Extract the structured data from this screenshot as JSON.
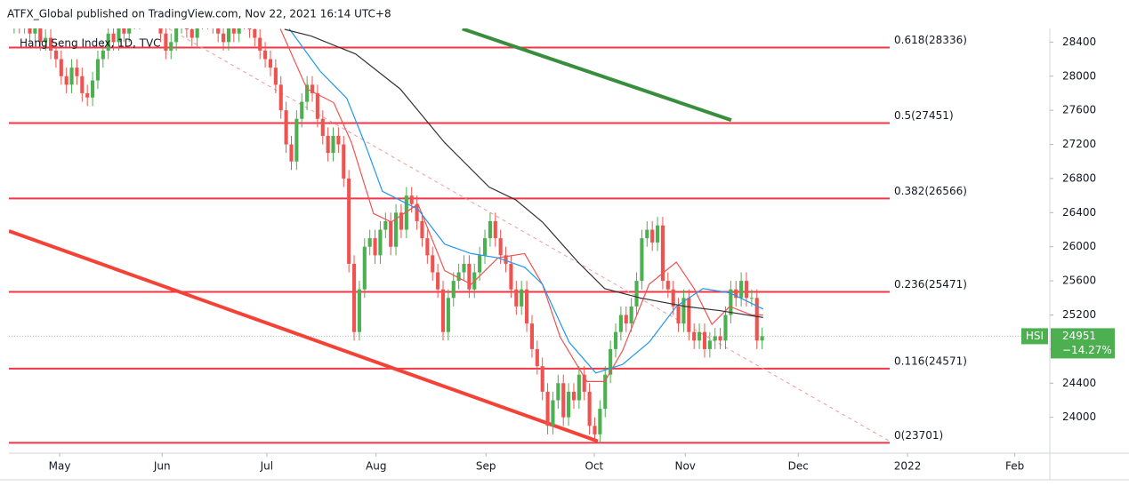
{
  "chart_data": {
    "type": "candlestick",
    "title": "ATFX_Global published on TradingView.com, Nov 22, 2021 16:14 UTC+8",
    "subtitle": "Hang Seng Index, 1D, TVC",
    "up_color": "#4caf50",
    "down_color": "#ef5350",
    "x": [
      1,
      2,
      3,
      4,
      5,
      6,
      7,
      8,
      9,
      10,
      11,
      12,
      13,
      14,
      15,
      16,
      17,
      18,
      19,
      20,
      21,
      22,
      23,
      24,
      25,
      26,
      27,
      28,
      29,
      30,
      31,
      32,
      33,
      34,
      35,
      36,
      37,
      38,
      39,
      40,
      41,
      42,
      43,
      44,
      45,
      46,
      47,
      48,
      49,
      50,
      51,
      52,
      53,
      54,
      55,
      56,
      57,
      58,
      59,
      60,
      61,
      62,
      63,
      64,
      65,
      66,
      67,
      68,
      69,
      70,
      71,
      72,
      73,
      74,
      75,
      76,
      77,
      78,
      79,
      80,
      81,
      82,
      83,
      84,
      85,
      86,
      87,
      88,
      89,
      90,
      91,
      92,
      93,
      94,
      95,
      96,
      97,
      98,
      99,
      100,
      101,
      102,
      103,
      104,
      105,
      106,
      107,
      108,
      109,
      110,
      111,
      112,
      113,
      114,
      115,
      116,
      117,
      118,
      119,
      120,
      121,
      122,
      123,
      124,
      125,
      126,
      127,
      128,
      129,
      130,
      131,
      132,
      133,
      134,
      135,
      136,
      137,
      138,
      139,
      140,
      141,
      142,
      143,
      144
    ],
    "open": [
      28600,
      28700,
      28600,
      28800,
      28500,
      28650,
      28400,
      28450,
      28300,
      28200,
      28000,
      27900,
      28100,
      28000,
      27800,
      27750,
      27950,
      28200,
      28300,
      28500,
      28400,
      28600,
      28500,
      28700,
      28650,
      28800,
      28750,
      28900,
      28700,
      28500,
      28300,
      28400,
      28600,
      28700,
      28550,
      28450,
      28800,
      28650,
      28700,
      28600,
      28500,
      28400,
      28600,
      28500,
      28700,
      28650,
      28550,
      28450,
      28300,
      28200,
      28100,
      27900,
      27600,
      27200,
      27000,
      27500,
      27700,
      27900,
      27800,
      27500,
      27300,
      27100,
      27300,
      27200,
      26800,
      25800,
      25000,
      25500,
      26000,
      26100,
      25900,
      26200,
      26300,
      26000,
      26400,
      26200,
      26600,
      26500,
      26300,
      26100,
      25900,
      25700,
      25500,
      25000,
      25400,
      25600,
      25700,
      25800,
      25500,
      25700,
      25900,
      26100,
      26300,
      26100,
      25900,
      25800,
      25500,
      25300,
      25500,
      25100,
      24800,
      24600,
      24300,
      23900,
      24200,
      24400,
      24000,
      24300,
      24200,
      24500,
      24300,
      23900,
      23800,
      24100,
      24500,
      24800,
      25000,
      25200,
      25100,
      25300,
      25600,
      26100,
      26200,
      26050,
      26250,
      25600,
      25500,
      25300,
      25100,
      25400,
      25000,
      24900,
      25000,
      24800,
      24900,
      24950,
      24900,
      25200,
      25500,
      25400,
      25600,
      25400,
      25400,
      24900
    ],
    "high": [
      28800,
      28800,
      28900,
      28900,
      28750,
      28750,
      28550,
      28550,
      28400,
      28300,
      28100,
      28200,
      28200,
      28100,
      27900,
      28050,
      28300,
      28400,
      28600,
      28600,
      28700,
      28700,
      28800,
      28800,
      28900,
      28900,
      29000,
      29000,
      28800,
      28600,
      28500,
      28700,
      28800,
      28800,
      28650,
      28900,
      28900,
      28800,
      28800,
      28700,
      28600,
      28700,
      28700,
      28800,
      28800,
      28750,
      28650,
      28550,
      28400,
      28300,
      28200,
      28000,
      27700,
      27300,
      27600,
      27800,
      28000,
      28000,
      27900,
      27600,
      27400,
      27400,
      27400,
      27300,
      26900,
      25900,
      25600,
      26100,
      26200,
      26200,
      26300,
      26400,
      26400,
      26500,
      26500,
      26700,
      26700,
      26600,
      26400,
      26200,
      26000,
      25800,
      25600,
      25500,
      25700,
      25800,
      25900,
      25900,
      25800,
      26000,
      26200,
      26400,
      26400,
      26200,
      26000,
      25900,
      25600,
      25600,
      25600,
      25200,
      24900,
      24700,
      24400,
      24300,
      24500,
      24500,
      24400,
      24400,
      24600,
      24600,
      24400,
      24000,
      24200,
      24600,
      24900,
      25100,
      25300,
      25300,
      25400,
      25700,
      26200,
      26300,
      26300,
      26350,
      26350,
      25700,
      25600,
      25400,
      25500,
      25500,
      25100,
      25100,
      25100,
      25000,
      25050,
      25050,
      25300,
      25600,
      25600,
      25700,
      25700,
      25500,
      25500,
      25051
    ],
    "low": [
      28500,
      28500,
      28500,
      28400,
      28400,
      28300,
      28300,
      28200,
      28100,
      27900,
      27800,
      27800,
      27900,
      27700,
      27650,
      27650,
      27850,
      28100,
      28200,
      28300,
      28300,
      28400,
      28400,
      28550,
      28550,
      28650,
      28650,
      28600,
      28400,
      28200,
      28200,
      28300,
      28500,
      28450,
      28350,
      28350,
      28550,
      28550,
      28500,
      28400,
      28300,
      28300,
      28400,
      28400,
      28550,
      28450,
      28350,
      28200,
      28100,
      28000,
      27800,
      27500,
      27100,
      26900,
      26900,
      27400,
      27600,
      27700,
      27400,
      27200,
      27000,
      27000,
      27100,
      26700,
      25700,
      24900,
      24900,
      25400,
      25900,
      25800,
      25800,
      26100,
      25900,
      25900,
      26100,
      26100,
      26400,
      26200,
      26000,
      25800,
      25600,
      25400,
      24900,
      24900,
      25300,
      25500,
      25600,
      25400,
      25400,
      25600,
      25800,
      26000,
      26000,
      25800,
      25700,
      25400,
      25200,
      25200,
      25000,
      24700,
      24500,
      24200,
      23800,
      23800,
      24100,
      23900,
      23900,
      24100,
      24100,
      24200,
      23800,
      23700,
      23700,
      24000,
      24400,
      24700,
      24900,
      25000,
      25000,
      25200,
      25500,
      26000,
      25950,
      25950,
      25500,
      25400,
      25200,
      25000,
      25000,
      24900,
      24800,
      24800,
      24700,
      24700,
      24800,
      24800,
      24800,
      25100,
      25300,
      25300,
      25300,
      25300,
      24800,
      24800
    ],
    "close": [
      28700,
      28600,
      28800,
      28500,
      28650,
      28400,
      28450,
      28300,
      28200,
      28000,
      27900,
      28100,
      28000,
      27800,
      27750,
      27950,
      28200,
      28300,
      28500,
      28400,
      28600,
      28500,
      28700,
      28650,
      28800,
      28750,
      28900,
      28700,
      28500,
      28300,
      28400,
      28600,
      28700,
      28550,
      28450,
      28800,
      28650,
      28700,
      28600,
      28500,
      28400,
      28600,
      28500,
      28700,
      28650,
      28550,
      28450,
      28300,
      28200,
      28100,
      27900,
      27600,
      27200,
      27000,
      27500,
      27700,
      27900,
      27800,
      27500,
      27300,
      27100,
      27300,
      27200,
      26800,
      25800,
      25000,
      25500,
      26000,
      26100,
      25900,
      26200,
      26300,
      26000,
      26400,
      26200,
      26600,
      26500,
      26300,
      26100,
      25900,
      25700,
      25500,
      25000,
      25400,
      25600,
      25700,
      25800,
      25500,
      25700,
      25900,
      26100,
      26300,
      26100,
      25900,
      25800,
      25500,
      25300,
      25500,
      25100,
      24800,
      24600,
      24300,
      23900,
      24200,
      24400,
      24000,
      24300,
      24200,
      24500,
      24300,
      23900,
      23800,
      24100,
      24500,
      24800,
      25000,
      25200,
      25100,
      25300,
      25600,
      26100,
      26200,
      26050,
      26250,
      25600,
      25500,
      25300,
      25100,
      25400,
      25000,
      24900,
      25000,
      24800,
      24900,
      24950,
      24900,
      25200,
      25500,
      25400,
      25600,
      25400,
      25400,
      24900,
      24951
    ],
    "lines": [
      {
        "color": "#ef5350",
        "x": [
          51.9,
          57,
          62.1,
          65.5,
          69.7,
          73.1,
          78.2,
          83.3,
          88.4,
          93.5,
          98.6,
          102,
          105.4,
          110.5,
          113.9,
          117.3,
          122.4,
          127.6,
          131,
          134.4,
          137.8,
          142,
          144.2
        ],
        "values": [
          28556,
          27850,
          27690,
          27220,
          26390,
          26290,
          26500,
          25720,
          25560,
          25870,
          25920,
          25560,
          24940,
          24420,
          24420,
          24780,
          25560,
          25820,
          25510,
          25090,
          25300,
          25200,
          25200
        ]
      },
      {
        "color": "#2196f3",
        "x": [
          53.6,
          59.5,
          64.6,
          68,
          71.4,
          78.2,
          83.3,
          88.4,
          93.5,
          98.6,
          102,
          107.1,
          112.2,
          117.3,
          122.4,
          127.6,
          132.7,
          137.8,
          144.2
        ],
        "values": [
          28556,
          28060,
          27740,
          27220,
          26650,
          26440,
          26030,
          25920,
          25870,
          25760,
          25560,
          24880,
          24520,
          24620,
          24880,
          25300,
          25510,
          25460,
          25270
        ]
      },
      {
        "color": "#333333",
        "x": [
          52.7,
          57.8,
          66.3,
          74.8,
          83.3,
          91.8,
          96.9,
          102,
          108.8,
          113.9,
          120.7,
          129.3,
          136,
          144.2
        ],
        "values": [
          28550,
          28470,
          28260,
          27850,
          27220,
          26700,
          26550,
          26290,
          25820,
          25510,
          25400,
          25300,
          25250,
          25170
        ]
      }
    ],
    "trendlines": [
      {
        "color": "#388e3c",
        "width": 4,
        "dashed": false,
        "x": [
          86.7,
          138.1
        ],
        "values": [
          28556,
          27485
        ]
      },
      {
        "color": "#f44336",
        "width": 4,
        "dashed": false,
        "x": [
          0,
          112.6
        ],
        "values": [
          26185,
          23720
        ]
      },
      {
        "color": "#ef9a9a",
        "width": 1,
        "dashed": true,
        "x": [
          30.6,
          168.4
        ],
        "values": [
          28556,
          23720
        ]
      }
    ],
    "fib_color": "#f23645",
    "fib_levels": [
      {
        "value": 28336,
        "label": "0.618(28336)"
      },
      {
        "value": 27451,
        "label": "0.5(27451)"
      },
      {
        "value": 26566,
        "label": "0.382(26566)"
      },
      {
        "value": 25471,
        "label": "0.236(25471)"
      },
      {
        "value": 24571,
        "label": "0.116(24571)"
      },
      {
        "value": 23701,
        "label": "0(23701)"
      }
    ],
    "last_price": {
      "symbol": "HSI",
      "value": 24951,
      "change": "−14.27%",
      "color": "#4caf50"
    },
    "xlim": [
      0,
      199
    ],
    "ylim": [
      23580,
      28560
    ],
    "yticks": [
      24000,
      24400,
      24800,
      25200,
      25600,
      26000,
      26400,
      26800,
      27200,
      27600,
      28000,
      28400
    ],
    "xticks": [
      {
        "value": 9.7,
        "label": "May"
      },
      {
        "value": 29.3,
        "label": "Jun"
      },
      {
        "value": 49.3,
        "label": "Jul"
      },
      {
        "value": 70.2,
        "label": "Aug"
      },
      {
        "value": 91.2,
        "label": "Sep"
      },
      {
        "value": 111.9,
        "label": "Oct"
      },
      {
        "value": 129.3,
        "label": "Nov"
      },
      {
        "value": 150.9,
        "label": "Dec"
      },
      {
        "value": 171.8,
        "label": "2022"
      },
      {
        "value": 192.3,
        "label": "Feb"
      }
    ]
  }
}
